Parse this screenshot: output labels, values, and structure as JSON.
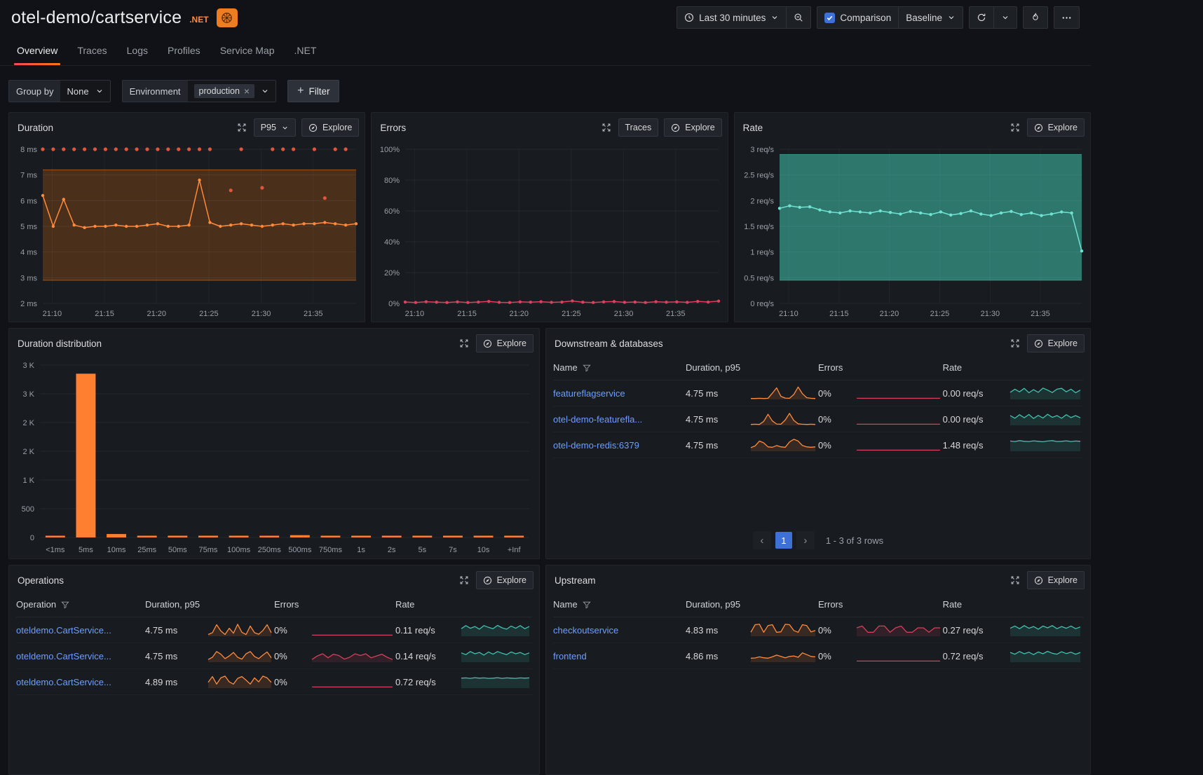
{
  "header": {
    "title": "otel-demo/cartservice",
    "runtime_badge": ".NET",
    "time_picker": "Last 30 minutes",
    "comparison_label": "Comparison",
    "baseline_label": "Baseline",
    "accent_color": "#ff780a"
  },
  "tabs": [
    {
      "label": "Overview",
      "active": true
    },
    {
      "label": "Traces"
    },
    {
      "label": "Logs"
    },
    {
      "label": "Profiles"
    },
    {
      "label": "Service Map"
    },
    {
      "label": ".NET"
    }
  ],
  "filters": {
    "group_by_label": "Group by",
    "group_by_value": "None",
    "environment_label": "Environment",
    "environment_tag": "production",
    "add_filter_label": "Filter"
  },
  "panels": {
    "duration": {
      "title": "Duration",
      "percentile": "P95",
      "explore_label": "Explore"
    },
    "errors": {
      "title": "Errors",
      "traces_label": "Traces",
      "explore_label": "Explore"
    },
    "rate": {
      "title": "Rate",
      "explore_label": "Explore"
    },
    "distribution": {
      "title": "Duration distribution",
      "explore_label": "Explore"
    },
    "downstream": {
      "title": "Downstream & databases",
      "explore_label": "Explore",
      "columns": {
        "name": "Name",
        "duration": "Duration, p95",
        "errors": "Errors",
        "rate": "Rate"
      },
      "rows": [
        {
          "name": "featureflagservice",
          "duration": "4.75 ms",
          "errors": "0%",
          "rate": "0.00 req/s",
          "spark_duration": [
            0.4,
            0.4,
            0.5,
            0.4,
            0.5,
            2.8,
            5.2,
            1.4,
            0.6,
            0.5,
            2.2,
            5.6,
            2.6,
            0.8,
            0.5,
            0.4
          ],
          "spark_errors": [
            0.5,
            0.5,
            0.5,
            0.5,
            0.5,
            0.5,
            0.5,
            0.5,
            0.5,
            0.5,
            0.5,
            0.5,
            0.5,
            0.5,
            0.5,
            0.5
          ],
          "spark_rate": [
            3.2,
            4.6,
            3.4,
            5.0,
            3.0,
            4.4,
            3.2,
            5.1,
            4.2,
            3.1,
            4.6,
            5.0,
            3.4,
            4.6,
            3.0,
            4.2
          ]
        },
        {
          "name": "otel-demo-featurefla...",
          "duration": "4.75 ms",
          "errors": "0%",
          "rate": "0.00 req/s",
          "spark_duration": [
            0.4,
            0.5,
            0.4,
            1.8,
            5.0,
            2.0,
            0.6,
            0.5,
            2.4,
            5.4,
            2.2,
            0.7,
            0.5,
            0.4,
            0.5,
            0.4
          ],
          "spark_errors": [
            0.5,
            0.5,
            0.5,
            0.5,
            0.5,
            0.5,
            0.5,
            0.5,
            0.5,
            0.5,
            0.5,
            0.5,
            0.5,
            0.5,
            0.5,
            0.5
          ],
          "spark_rate": [
            4.4,
            3.2,
            4.8,
            3.4,
            4.9,
            3.1,
            4.5,
            3.3,
            5.0,
            3.6,
            4.4,
            3.2,
            4.8,
            3.5,
            4.4,
            3.4
          ]
        },
        {
          "name": "otel-demo-redis:6379",
          "duration": "4.75 ms",
          "errors": "0%",
          "rate": "1.48 req/s",
          "spark_duration": [
            1.6,
            2.4,
            4.6,
            3.8,
            2.0,
            1.8,
            2.6,
            2.0,
            1.8,
            4.2,
            5.4,
            4.6,
            2.6,
            2.0,
            1.8,
            2.0
          ],
          "spark_errors": [
            0.5,
            0.5,
            0.5,
            0.5,
            0.5,
            0.5,
            0.5,
            0.5,
            0.5,
            0.5,
            0.5,
            0.5,
            0.5,
            0.5,
            0.5,
            0.5
          ],
          "spark_rate": [
            4.6,
            4.4,
            4.8,
            4.5,
            4.4,
            4.7,
            4.5,
            4.3,
            4.6,
            4.8,
            4.4,
            4.5,
            4.7,
            4.4,
            4.6,
            4.5
          ]
        }
      ],
      "pagination": {
        "prev": "‹",
        "page": "1",
        "next": "›",
        "info": "1 - 3 of 3 rows"
      }
    },
    "operations": {
      "title": "Operations",
      "explore_label": "Explore",
      "columns": {
        "name": "Operation",
        "duration": "Duration, p95",
        "errors": "Errors",
        "rate": "Rate"
      },
      "rows": [
        {
          "name": "oteldemo.CartService...",
          "duration": "4.75 ms",
          "errors": "0%",
          "rate": "0.11 req/s",
          "spark_duration": [
            0.8,
            1.6,
            5.2,
            2.4,
            0.8,
            3.6,
            1.4,
            5.4,
            1.8,
            0.8,
            4.6,
            1.6,
            0.9,
            2.6,
            5.2,
            1.6
          ],
          "spark_errors": [
            0.5,
            0.5,
            0.5,
            0.5,
            0.5,
            0.5,
            0.5,
            0.5,
            0.5,
            0.5,
            0.5,
            0.5,
            0.5,
            0.5,
            0.5,
            0.5
          ],
          "spark_rate": [
            3.4,
            4.8,
            3.6,
            4.4,
            3.2,
            4.8,
            4.0,
            3.4,
            4.9,
            3.8,
            3.2,
            4.6,
            3.6,
            4.8,
            3.4,
            4.4
          ]
        },
        {
          "name": "oteldemo.CartService...",
          "duration": "4.75 ms",
          "errors": "0%",
          "rate": "0.14 req/s",
          "spark_duration": [
            1.2,
            2.2,
            4.8,
            3.6,
            1.6,
            2.8,
            4.4,
            2.2,
            1.4,
            3.8,
            4.8,
            2.6,
            1.6,
            3.2,
            4.6,
            2.0
          ],
          "spark_errors": [
            1.2,
            2.8,
            3.8,
            2.0,
            3.6,
            3.0,
            1.4,
            2.2,
            3.8,
            3.0,
            3.8,
            2.0,
            2.8,
            3.6,
            2.2,
            1.2
          ],
          "spark_rate": [
            4.2,
            3.4,
            4.8,
            3.8,
            4.4,
            3.2,
            4.6,
            3.6,
            4.8,
            4.0,
            3.4,
            4.6,
            3.8,
            4.4,
            3.4,
            4.2
          ]
        },
        {
          "name": "oteldemo.CartService...",
          "duration": "4.89 ms",
          "errors": "0%",
          "rate": "0.72 req/s",
          "spark_duration": [
            2.6,
            5.2,
            1.8,
            4.6,
            5.4,
            2.8,
            1.8,
            4.4,
            5.2,
            3.6,
            1.8,
            4.6,
            2.8,
            5.4,
            4.6,
            2.6
          ],
          "spark_errors": [
            0.5,
            0.5,
            0.5,
            0.5,
            0.5,
            0.5,
            0.5,
            0.5,
            0.5,
            0.5,
            0.5,
            0.5,
            0.5,
            0.5,
            0.5,
            0.5
          ],
          "spark_rate": [
            4.5,
            4.6,
            4.4,
            4.7,
            4.5,
            4.6,
            4.4,
            4.5,
            4.7,
            4.4,
            4.6,
            4.5,
            4.4,
            4.6,
            4.5,
            4.6
          ]
        }
      ]
    },
    "upstream": {
      "title": "Upstream",
      "explore_label": "Explore",
      "columns": {
        "name": "Name",
        "duration": "Duration, p95",
        "errors": "Errors",
        "rate": "Rate"
      },
      "rows": [
        {
          "name": "checkoutservice",
          "duration": "4.83 ms",
          "errors": "0%",
          "rate": "0.27 req/s",
          "spark_duration": [
            1.8,
            5.2,
            5.4,
            1.8,
            4.8,
            5.2,
            1.8,
            2.0,
            5.4,
            5.2,
            2.6,
            1.8,
            5.2,
            4.8,
            2.0,
            2.6
          ],
          "spark_errors": [
            3.8,
            4.6,
            1.8,
            1.8,
            4.6,
            4.6,
            1.8,
            3.8,
            4.6,
            1.8,
            1.8,
            3.8,
            3.8,
            1.8,
            3.8,
            3.8
          ],
          "spark_rate": [
            3.6,
            4.6,
            3.4,
            4.8,
            3.6,
            4.4,
            3.2,
            4.6,
            3.8,
            4.8,
            3.4,
            4.4,
            3.6,
            4.6,
            3.4,
            4.2
          ]
        },
        {
          "name": "frontend",
          "duration": "4.86 ms",
          "errors": "0%",
          "rate": "0.72 req/s",
          "spark_duration": [
            1.8,
            1.9,
            2.4,
            2.0,
            1.8,
            2.4,
            3.2,
            2.6,
            2.0,
            2.6,
            2.8,
            2.2,
            4.2,
            3.4,
            2.6,
            2.4
          ],
          "spark_errors": [
            0.5,
            0.5,
            0.5,
            0.5,
            0.5,
            0.5,
            0.5,
            0.5,
            0.5,
            0.5,
            0.5,
            0.5,
            0.5,
            0.5,
            0.5,
            0.5
          ],
          "spark_rate": [
            4.4,
            3.6,
            4.8,
            3.8,
            4.5,
            3.4,
            4.6,
            3.8,
            4.9,
            4.0,
            3.6,
            4.7,
            3.9,
            4.5,
            3.6,
            4.4
          ]
        }
      ]
    }
  },
  "chart_data": {
    "duration": {
      "type": "line",
      "title": "Duration p95 (ms)",
      "ylim": [
        2,
        8
      ],
      "padL": 48,
      "yticks": [
        {
          "v": 2,
          "label": "2 ms"
        },
        {
          "v": 3,
          "label": "3 ms"
        },
        {
          "v": 4,
          "label": "4 ms"
        },
        {
          "v": 5,
          "label": "5 ms"
        },
        {
          "v": 6,
          "label": "6 ms"
        },
        {
          "v": 7,
          "label": "7 ms"
        },
        {
          "v": 8,
          "label": "8 ms"
        }
      ],
      "xticks": [
        {
          "f": 0.03,
          "label": "21:10"
        },
        {
          "f": 0.197,
          "label": "21:15"
        },
        {
          "f": 0.363,
          "label": "21:20"
        },
        {
          "f": 0.53,
          "label": "21:25"
        },
        {
          "f": 0.697,
          "label": "21:30"
        },
        {
          "f": 0.863,
          "label": "21:35"
        }
      ],
      "series": [
        {
          "type": "band",
          "name": "baseline-band",
          "from": 2.9,
          "to": 7.2,
          "color": "#ff780a",
          "opacity": 0.22
        },
        {
          "type": "line",
          "name": "p95",
          "color": "#ff8a3c",
          "markers": true,
          "values": [
            6.2,
            5.0,
            6.05,
            5.05,
            4.95,
            5.0,
            5.0,
            5.05,
            5.0,
            5.0,
            5.05,
            5.1,
            5.0,
            5.0,
            5.05,
            6.8,
            5.15,
            5.0,
            5.05,
            5.1,
            5.05,
            5.0,
            5.05,
            5.1,
            5.05,
            5.1,
            5.1,
            5.15,
            5.1,
            5.05,
            5.1
          ]
        },
        {
          "type": "scatter",
          "name": "outliers",
          "color": "#e0563c",
          "values": [
            8,
            8,
            8,
            8,
            8,
            8,
            8,
            8,
            8,
            8,
            8,
            8,
            8,
            8,
            8,
            8,
            8,
            null,
            6.4,
            8,
            null,
            6.5,
            8,
            8,
            8,
            null,
            8,
            6.1,
            8,
            8,
            null
          ]
        }
      ]
    },
    "errors": {
      "type": "line",
      "title": "Errors (%)",
      "ylim": [
        0,
        100
      ],
      "padL": 48,
      "yticks": [
        {
          "v": 0,
          "label": "0%"
        },
        {
          "v": 20,
          "label": "20%"
        },
        {
          "v": 40,
          "label": "40%"
        },
        {
          "v": 60,
          "label": "60%"
        },
        {
          "v": 80,
          "label": "80%"
        },
        {
          "v": 100,
          "label": "100%"
        }
      ],
      "xticks": [
        {
          "f": 0.03,
          "label": "21:10"
        },
        {
          "f": 0.197,
          "label": "21:15"
        },
        {
          "f": 0.363,
          "label": "21:20"
        },
        {
          "f": 0.53,
          "label": "21:25"
        },
        {
          "f": 0.697,
          "label": "21:30"
        },
        {
          "f": 0.863,
          "label": "21:35"
        }
      ],
      "series": [
        {
          "type": "line",
          "name": "error-rate",
          "color": "#e0405a",
          "markers": true,
          "values": [
            0.9,
            0.6,
            1.1,
            0.8,
            0.6,
            1.0,
            0.6,
            0.9,
            1.3,
            0.7,
            0.6,
            1.0,
            0.8,
            1.1,
            0.7,
            0.9,
            1.6,
            0.8,
            0.6,
            1.0,
            1.2,
            0.7,
            0.9,
            0.6,
            1.1,
            0.8,
            1.0,
            0.7,
            1.3,
            0.9,
            1.5
          ]
        }
      ]
    },
    "rate": {
      "type": "line",
      "title": "Rate (req/s)",
      "ylim": [
        0,
        3
      ],
      "padL": 64,
      "yticks": [
        {
          "v": 0,
          "label": "0 req/s"
        },
        {
          "v": 0.5,
          "label": "0.5 req/s"
        },
        {
          "v": 1,
          "label": "1 req/s"
        },
        {
          "v": 1.5,
          "label": "1.5 req/s"
        },
        {
          "v": 2,
          "label": "2 req/s"
        },
        {
          "v": 2.5,
          "label": "2.5 req/s"
        },
        {
          "v": 3,
          "label": "3 req/s"
        }
      ],
      "xticks": [
        {
          "f": 0.03,
          "label": "21:10"
        },
        {
          "f": 0.197,
          "label": "21:15"
        },
        {
          "f": 0.363,
          "label": "21:20"
        },
        {
          "f": 0.53,
          "label": "21:25"
        },
        {
          "f": 0.697,
          "label": "21:30"
        },
        {
          "f": 0.863,
          "label": "21:35"
        }
      ],
      "series": [
        {
          "type": "band",
          "name": "baseline-band",
          "from": 0.45,
          "to": 2.9,
          "color": "#3fc2ad",
          "opacity": 0.55
        },
        {
          "type": "line",
          "name": "rate",
          "color": "#6fe3d2",
          "markers": true,
          "values": [
            1.85,
            1.9,
            1.87,
            1.88,
            1.82,
            1.78,
            1.76,
            1.8,
            1.78,
            1.76,
            1.8,
            1.77,
            1.74,
            1.79,
            1.76,
            1.73,
            1.78,
            1.72,
            1.75,
            1.8,
            1.74,
            1.71,
            1.76,
            1.79,
            1.73,
            1.76,
            1.71,
            1.74,
            1.78,
            1.76,
            1.02
          ]
        }
      ]
    },
    "distribution": {
      "type": "bar",
      "title": "Duration distribution",
      "color": "#ff7f31",
      "padL": 44,
      "ylim": [
        0,
        3000
      ],
      "yticks": [
        {
          "v": 0,
          "label": "0"
        },
        {
          "v": 500,
          "label": "500"
        },
        {
          "v": 1000,
          "label": "1 K"
        },
        {
          "v": 1500,
          "label": "2 K"
        },
        {
          "v": 2000,
          "label": "2 K"
        },
        {
          "v": 2500,
          "label": "3 K"
        },
        {
          "v": 3000,
          "label": "3 K"
        }
      ],
      "categories": [
        "<1ms",
        "5ms",
        "10ms",
        "25ms",
        "50ms",
        "75ms",
        "100ms",
        "250ms",
        "500ms",
        "750ms",
        "1s",
        "2s",
        "5s",
        "7s",
        "10s",
        "+Inf"
      ],
      "values": [
        15,
        2850,
        60,
        18,
        10,
        6,
        6,
        10,
        40,
        6,
        5,
        4,
        3,
        3,
        3,
        12
      ]
    }
  }
}
